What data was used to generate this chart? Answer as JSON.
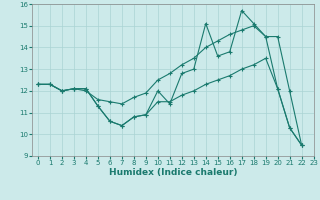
{
  "xlabel": "Humidex (Indice chaleur)",
  "background_color": "#cceaea",
  "line_color": "#1a7a6e",
  "grid_color": "#aad4d4",
  "xlim": [
    -0.5,
    23
  ],
  "ylim": [
    9,
    16
  ],
  "yticks": [
    9,
    10,
    11,
    12,
    13,
    14,
    15,
    16
  ],
  "xticks": [
    0,
    1,
    2,
    3,
    4,
    5,
    6,
    7,
    8,
    9,
    10,
    11,
    12,
    13,
    14,
    15,
    16,
    17,
    18,
    19,
    20,
    21,
    22,
    23
  ],
  "series": [
    [
      12.3,
      12.3,
      12.0,
      12.1,
      12.1,
      11.3,
      10.6,
      10.4,
      10.8,
      10.9,
      12.0,
      11.4,
      12.8,
      13.0,
      15.1,
      13.6,
      13.8,
      15.7,
      15.1,
      14.5,
      12.1,
      10.3,
      9.5
    ],
    [
      12.3,
      12.3,
      12.0,
      12.1,
      12.0,
      11.6,
      11.5,
      11.4,
      11.7,
      11.9,
      12.5,
      12.8,
      13.2,
      13.5,
      14.0,
      14.3,
      14.6,
      14.8,
      15.0,
      14.5,
      14.5,
      12.0,
      9.5
    ],
    [
      12.3,
      12.3,
      12.0,
      12.1,
      12.1,
      11.3,
      10.6,
      10.4,
      10.8,
      10.9,
      11.5,
      11.5,
      11.8,
      12.0,
      12.3,
      12.5,
      12.7,
      13.0,
      13.2,
      13.5,
      12.1,
      10.3,
      9.5
    ]
  ]
}
